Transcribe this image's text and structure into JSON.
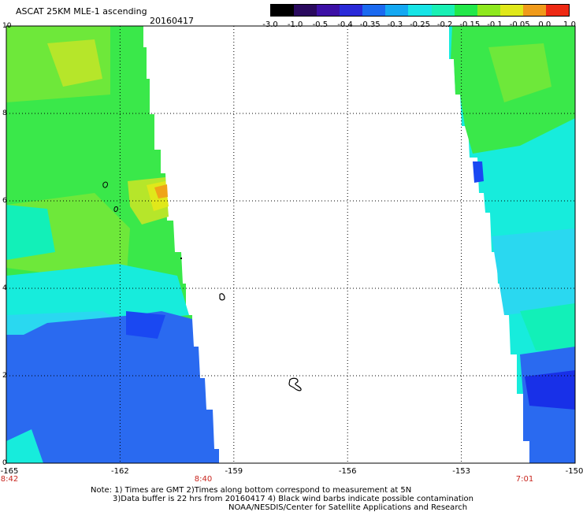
{
  "title": "ASCAT 25KM MLE-1 ascending",
  "date": "20160417",
  "colorbar": {
    "labels": [
      "-3.0",
      "-1.0",
      "-0.5",
      "-0.4",
      "-0.35",
      "-0.3",
      "-0.25",
      "-0.2",
      "-0.15",
      "-0.1",
      "-0.05",
      "0.0",
      "1.0"
    ],
    "colors": [
      "#000000",
      "#2a0a5e",
      "#3c10a5",
      "#2a2ad8",
      "#1b6af0",
      "#14a8f2",
      "#17e4e6",
      "#19f0b4",
      "#22e84a",
      "#8ee81e",
      "#e0e81a",
      "#f09a1a",
      "#ee2a14"
    ]
  },
  "map": {
    "lon_range": [
      -165,
      -150
    ],
    "lat_range": [
      0,
      10
    ],
    "x_ticks": [
      "-165",
      "-162",
      "-159",
      "-156",
      "-153",
      "-150"
    ],
    "y_ticks": [
      "0",
      "2",
      "4",
      "6",
      "8",
      "10"
    ],
    "time_labels": [
      "8:42",
      "8:40",
      "7:01"
    ],
    "colors": {
      "green": "#3ae84a",
      "lightgreen": "#6ee83a",
      "yellowgreen": "#b6e62a",
      "yellow": "#e0e81a",
      "orange": "#f0a418",
      "cyan": "#17ecdc",
      "aqua": "#12f0b8",
      "lightblue": "#2ad8f0",
      "blue": "#2a6af0",
      "deepblue": "#1a48f2",
      "navy": "#1830e8"
    }
  },
  "notes": {
    "line1": "Note: 1) Times are GMT 2)Times along bottom correspond to measurement at 5N",
    "line2": "3)Data buffer is 22 hrs from 20160417 4) Black wind barbs indicate possible contamination",
    "line3": "NOAA/NESDIS/Center for Satellite Applications and Research"
  }
}
